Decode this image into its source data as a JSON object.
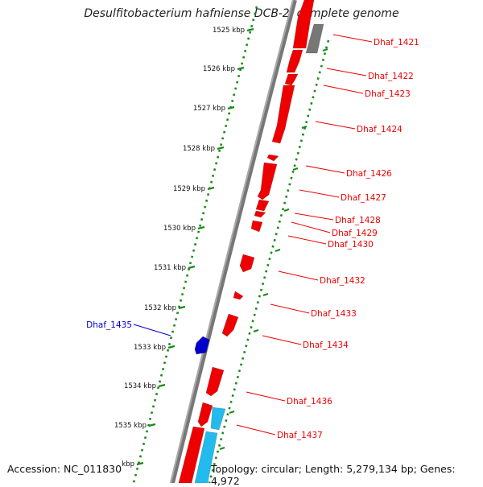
{
  "title": "Desulfitobacterium hafniense DCB-2, complete genome",
  "accession": "Accession: NC_011830",
  "summary": "Topology: circular; Length: 5,279,134 bp; Genes: 4,972",
  "colors": {
    "forward_gene": "#ee0000",
    "reverse_gene": "#0000cc",
    "rna_gene": "#22bbee",
    "pseudo_gene": "#777777",
    "ruler_dots": "#1a8a1a",
    "backbone": "#888888"
  },
  "ruler": {
    "ticks": [
      "1525 kbp",
      "1526 kbp",
      "1527 kbp",
      "1528 kbp",
      "1529 kbp",
      "1530 kbp",
      "1531 kbp",
      "1532 kbp",
      "1533 kbp",
      "1534 kbp",
      "1535 kbp",
      "kbp"
    ]
  },
  "gene_labels": [
    {
      "name": "Dhaf_1421",
      "strand": "forward"
    },
    {
      "name": "Dhaf_1422",
      "strand": "forward"
    },
    {
      "name": "Dhaf_1423",
      "strand": "forward"
    },
    {
      "name": "Dhaf_1424",
      "strand": "forward"
    },
    {
      "name": "Dhaf_1426",
      "strand": "forward"
    },
    {
      "name": "Dhaf_1427",
      "strand": "forward"
    },
    {
      "name": "Dhaf_1428",
      "strand": "forward"
    },
    {
      "name": "Dhaf_1429",
      "strand": "forward"
    },
    {
      "name": "Dhaf_1430",
      "strand": "forward"
    },
    {
      "name": "Dhaf_1432",
      "strand": "forward"
    },
    {
      "name": "Dhaf_1433",
      "strand": "forward"
    },
    {
      "name": "Dhaf_1434",
      "strand": "forward"
    },
    {
      "name": "Dhaf_1435",
      "strand": "reverse"
    },
    {
      "name": "Dhaf_1436",
      "strand": "forward"
    },
    {
      "name": "Dhaf_1437",
      "strand": "forward"
    }
  ]
}
